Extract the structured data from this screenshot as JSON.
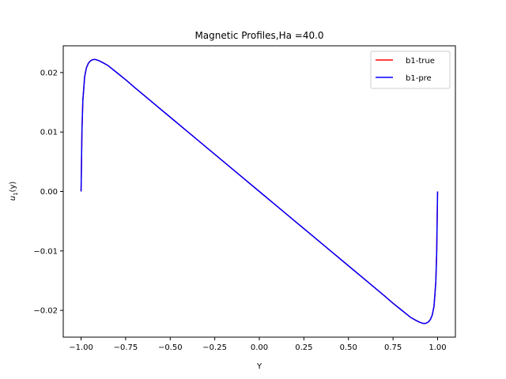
{
  "chart_data": {
    "type": "line",
    "title": "Magnetic Profiles,Ha =40.0",
    "xlabel": "Y",
    "ylabel_var": "u",
    "ylabel_sub": "1",
    "ylabel_arg": "(y)",
    "xlim": [
      -1.1,
      1.1
    ],
    "ylim": [
      -0.0245,
      0.0245
    ],
    "xticks": [
      -1.0,
      -0.75,
      -0.5,
      -0.25,
      0.0,
      0.25,
      0.5,
      0.75,
      1.0
    ],
    "xtick_labels": [
      "−1.00",
      "−0.75",
      "−0.50",
      "−0.25",
      "0.00",
      "0.25",
      "0.50",
      "0.75",
      "1.00"
    ],
    "yticks": [
      -0.02,
      -0.01,
      0.0,
      0.01,
      0.02
    ],
    "ytick_labels": [
      "−0.02",
      "−0.01",
      "0.00",
      "0.01",
      "0.02"
    ],
    "legend_position": "top-right",
    "grid": false,
    "series": [
      {
        "name": "b1-true",
        "color": "#ff0000",
        "x": [
          -1.0,
          -0.995,
          -0.99,
          -0.98,
          -0.97,
          -0.96,
          -0.95,
          -0.94,
          -0.93,
          -0.92,
          -0.91,
          -0.9,
          -0.88,
          -0.85,
          -0.8,
          -0.75,
          -0.7,
          -0.6,
          -0.5,
          -0.4,
          -0.3,
          -0.2,
          -0.1,
          0.0,
          0.1,
          0.2,
          0.3,
          0.4,
          0.5,
          0.6,
          0.7,
          0.75,
          0.8,
          0.85,
          0.88,
          0.9,
          0.91,
          0.92,
          0.93,
          0.94,
          0.95,
          0.96,
          0.97,
          0.98,
          0.99,
          0.995,
          1.0
        ],
        "y": [
          0.0,
          0.0103,
          0.0153,
          0.0193,
          0.0208,
          0.0215,
          0.0219,
          0.0221,
          0.0222,
          0.0222,
          0.0221,
          0.022,
          0.0217,
          0.0212,
          0.02,
          0.0188,
          0.0175,
          0.015,
          0.0125,
          0.01,
          0.0075,
          0.005,
          0.0025,
          0.0,
          -0.0025,
          -0.005,
          -0.0075,
          -0.01,
          -0.0125,
          -0.015,
          -0.0175,
          -0.0188,
          -0.02,
          -0.0212,
          -0.0217,
          -0.022,
          -0.0221,
          -0.0222,
          -0.0222,
          -0.0221,
          -0.0219,
          -0.0215,
          -0.0208,
          -0.0193,
          -0.0153,
          -0.0103,
          0.0
        ]
      },
      {
        "name": "b1-pre",
        "color": "#0000ff",
        "x": [
          -1.0,
          -0.995,
          -0.99,
          -0.98,
          -0.97,
          -0.96,
          -0.95,
          -0.94,
          -0.93,
          -0.92,
          -0.91,
          -0.9,
          -0.88,
          -0.85,
          -0.8,
          -0.75,
          -0.7,
          -0.6,
          -0.5,
          -0.4,
          -0.3,
          -0.2,
          -0.1,
          0.0,
          0.1,
          0.2,
          0.3,
          0.4,
          0.5,
          0.6,
          0.7,
          0.75,
          0.8,
          0.85,
          0.88,
          0.9,
          0.91,
          0.92,
          0.93,
          0.94,
          0.95,
          0.96,
          0.97,
          0.98,
          0.99,
          0.995,
          1.0
        ],
        "y": [
          0.0,
          0.0103,
          0.0153,
          0.0193,
          0.0208,
          0.0215,
          0.0219,
          0.0221,
          0.0222,
          0.0222,
          0.0221,
          0.022,
          0.0217,
          0.0212,
          0.02,
          0.0188,
          0.0175,
          0.015,
          0.0125,
          0.01,
          0.0075,
          0.005,
          0.0025,
          0.0,
          -0.0025,
          -0.005,
          -0.0075,
          -0.01,
          -0.0125,
          -0.015,
          -0.0175,
          -0.0188,
          -0.02,
          -0.0212,
          -0.0217,
          -0.022,
          -0.0221,
          -0.0222,
          -0.0222,
          -0.0221,
          -0.0219,
          -0.0215,
          -0.0208,
          -0.0193,
          -0.0153,
          -0.0103,
          0.0
        ]
      }
    ]
  }
}
